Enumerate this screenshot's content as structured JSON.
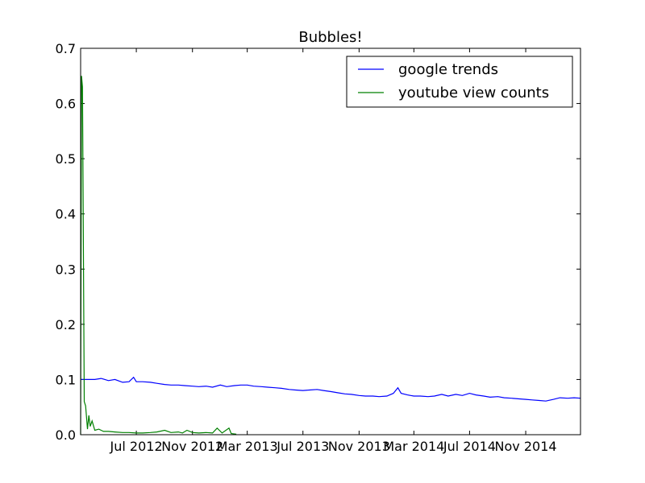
{
  "chart_data": {
    "type": "line",
    "title": "Bubbles!",
    "xlabel": "",
    "ylabel": "",
    "ylim": [
      0,
      0.7
    ],
    "xlim": [
      "2012-03-01",
      "2015-03-01"
    ],
    "yticks": [
      {
        "value": 0.0,
        "label": "0.0"
      },
      {
        "value": 0.1,
        "label": "0.1"
      },
      {
        "value": 0.2,
        "label": "0.2"
      },
      {
        "value": 0.3,
        "label": "0.3"
      },
      {
        "value": 0.4,
        "label": "0.4"
      },
      {
        "value": 0.5,
        "label": "0.5"
      },
      {
        "value": 0.6,
        "label": "0.6"
      },
      {
        "value": 0.7,
        "label": "0.7"
      }
    ],
    "xticks": [
      {
        "value": "2012-07-01",
        "label": "Jul 2012"
      },
      {
        "value": "2012-11-01",
        "label": "Nov 2012"
      },
      {
        "value": "2013-03-01",
        "label": "Mar 2013"
      },
      {
        "value": "2013-07-01",
        "label": "Jul 2013"
      },
      {
        "value": "2013-11-01",
        "label": "Nov 2013"
      },
      {
        "value": "2014-03-01",
        "label": "Mar 2014"
      },
      {
        "value": "2014-07-01",
        "label": "Jul 2014"
      },
      {
        "value": "2014-11-01",
        "label": "Nov 2014"
      }
    ],
    "grid": false,
    "legend_position": "top-right",
    "series": [
      {
        "name": "google trends",
        "color": "#0000ff",
        "points": [
          [
            "2012-03-01",
            0.1
          ],
          [
            "2012-03-15",
            0.1
          ],
          [
            "2012-04-01",
            0.1
          ],
          [
            "2012-04-15",
            0.102
          ],
          [
            "2012-05-01",
            0.098
          ],
          [
            "2012-05-15",
            0.1
          ],
          [
            "2012-06-01",
            0.095
          ],
          [
            "2012-06-15",
            0.096
          ],
          [
            "2012-06-25",
            0.104
          ],
          [
            "2012-07-01",
            0.096
          ],
          [
            "2012-07-15",
            0.096
          ],
          [
            "2012-08-01",
            0.095
          ],
          [
            "2012-08-15",
            0.093
          ],
          [
            "2012-09-01",
            0.091
          ],
          [
            "2012-09-15",
            0.09
          ],
          [
            "2012-10-01",
            0.09
          ],
          [
            "2012-10-15",
            0.089
          ],
          [
            "2012-11-01",
            0.088
          ],
          [
            "2012-11-15",
            0.087
          ],
          [
            "2012-12-01",
            0.088
          ],
          [
            "2012-12-15",
            0.086
          ],
          [
            "2013-01-01",
            0.09
          ],
          [
            "2013-01-15",
            0.087
          ],
          [
            "2013-02-01",
            0.089
          ],
          [
            "2013-02-15",
            0.09
          ],
          [
            "2013-03-01",
            0.09
          ],
          [
            "2013-03-15",
            0.088
          ],
          [
            "2013-04-01",
            0.087
          ],
          [
            "2013-04-15",
            0.086
          ],
          [
            "2013-05-01",
            0.085
          ],
          [
            "2013-05-15",
            0.084
          ],
          [
            "2013-06-01",
            0.082
          ],
          [
            "2013-06-15",
            0.081
          ],
          [
            "2013-07-01",
            0.08
          ],
          [
            "2013-07-15",
            0.081
          ],
          [
            "2013-08-01",
            0.082
          ],
          [
            "2013-08-15",
            0.08
          ],
          [
            "2013-09-01",
            0.078
          ],
          [
            "2013-09-15",
            0.076
          ],
          [
            "2013-10-01",
            0.074
          ],
          [
            "2013-10-15",
            0.073
          ],
          [
            "2013-11-01",
            0.071
          ],
          [
            "2013-11-15",
            0.07
          ],
          [
            "2013-12-01",
            0.07
          ],
          [
            "2013-12-15",
            0.069
          ],
          [
            "2014-01-01",
            0.07
          ],
          [
            "2014-01-15",
            0.075
          ],
          [
            "2014-01-25",
            0.085
          ],
          [
            "2014-02-01",
            0.075
          ],
          [
            "2014-02-15",
            0.072
          ],
          [
            "2014-03-01",
            0.07
          ],
          [
            "2014-03-15",
            0.07
          ],
          [
            "2014-04-01",
            0.069
          ],
          [
            "2014-04-15",
            0.07
          ],
          [
            "2014-05-01",
            0.073
          ],
          [
            "2014-05-15",
            0.07
          ],
          [
            "2014-06-01",
            0.073
          ],
          [
            "2014-06-15",
            0.071
          ],
          [
            "2014-07-01",
            0.075
          ],
          [
            "2014-07-15",
            0.072
          ],
          [
            "2014-08-01",
            0.07
          ],
          [
            "2014-08-15",
            0.068
          ],
          [
            "2014-09-01",
            0.069
          ],
          [
            "2014-09-15",
            0.067
          ],
          [
            "2014-10-01",
            0.066
          ],
          [
            "2014-10-15",
            0.065
          ],
          [
            "2014-11-01",
            0.064
          ],
          [
            "2014-11-15",
            0.063
          ],
          [
            "2014-12-01",
            0.062
          ],
          [
            "2014-12-15",
            0.061
          ],
          [
            "2015-01-01",
            0.064
          ],
          [
            "2015-01-15",
            0.067
          ],
          [
            "2015-02-01",
            0.066
          ],
          [
            "2015-02-15",
            0.067
          ],
          [
            "2015-03-01",
            0.066
          ]
        ]
      },
      {
        "name": "youtube view counts",
        "color": "#008000",
        "points": [
          [
            "2012-03-01",
            0.0
          ],
          [
            "2012-03-03",
            0.65
          ],
          [
            "2012-03-05",
            0.63
          ],
          [
            "2012-03-07",
            0.35
          ],
          [
            "2012-03-09",
            0.06
          ],
          [
            "2012-03-12",
            0.052
          ],
          [
            "2012-03-16",
            0.01
          ],
          [
            "2012-03-19",
            0.035
          ],
          [
            "2012-03-22",
            0.015
          ],
          [
            "2012-03-26",
            0.025
          ],
          [
            "2012-04-01",
            0.008
          ],
          [
            "2012-04-10",
            0.01
          ],
          [
            "2012-04-20",
            0.006
          ],
          [
            "2012-05-01",
            0.006
          ],
          [
            "2012-05-15",
            0.005
          ],
          [
            "2012-06-01",
            0.004
          ],
          [
            "2012-06-15",
            0.004
          ],
          [
            "2012-07-01",
            0.003
          ],
          [
            "2012-07-15",
            0.003
          ],
          [
            "2012-08-01",
            0.004
          ],
          [
            "2012-08-15",
            0.005
          ],
          [
            "2012-09-01",
            0.008
          ],
          [
            "2012-09-15",
            0.004
          ],
          [
            "2012-10-01",
            0.005
          ],
          [
            "2012-10-10",
            0.003
          ],
          [
            "2012-10-20",
            0.008
          ],
          [
            "2012-11-01",
            0.004
          ],
          [
            "2012-11-15",
            0.003
          ],
          [
            "2012-12-01",
            0.004
          ],
          [
            "2012-12-15",
            0.003
          ],
          [
            "2012-12-25",
            0.012
          ],
          [
            "2013-01-05",
            0.003
          ],
          [
            "2013-01-20",
            0.012
          ],
          [
            "2013-01-25",
            0.002
          ],
          [
            "2013-02-05",
            0.001
          ]
        ]
      }
    ]
  }
}
